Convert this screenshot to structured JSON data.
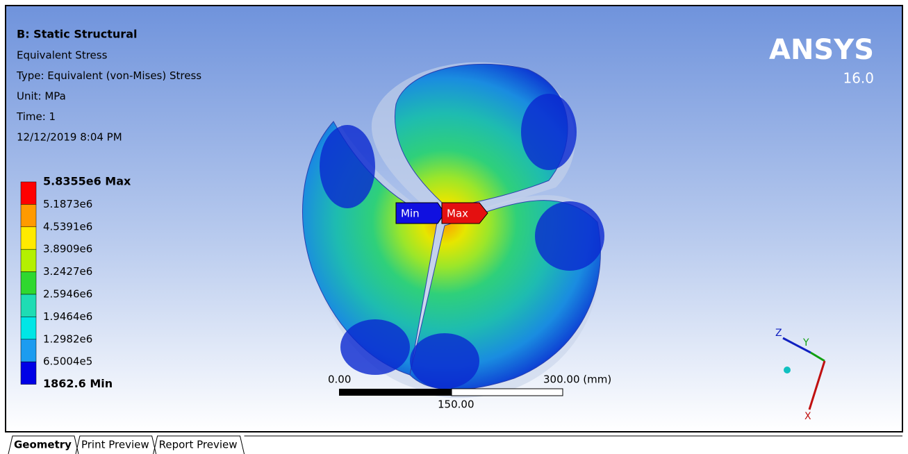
{
  "header": {
    "title": "B: Static Structural",
    "lines": [
      "Equivalent Stress",
      "Type: Equivalent (von-Mises) Stress",
      "Unit: MPa",
      "Time: 1",
      "12/12/2019 8:04 PM"
    ]
  },
  "legend": {
    "max_label": "5.8355e6 Max",
    "labels": [
      "5.1873e6",
      "4.5391e6",
      "3.8909e6",
      "3.2427e6",
      "2.5946e6",
      "1.9464e6",
      "1.2982e6",
      "6.5004e5"
    ],
    "min_label": "1862.6 Min",
    "colors": [
      "#ff0000",
      "#ff9a00",
      "#ffea00",
      "#b4f000",
      "#2fd82f",
      "#1edcb4",
      "#00e6e6",
      "#1c9cf0",
      "#0000e6"
    ]
  },
  "logo": {
    "name": "ANSYS",
    "version": "16.0"
  },
  "probes": {
    "min": "Min",
    "max": "Max"
  },
  "scale": {
    "start": "0.00",
    "end": "300.00 (mm)",
    "mid": "150.00"
  },
  "triad": {
    "z": "Z",
    "y": "Y",
    "x": "X"
  },
  "tabs": [
    "Geometry",
    "Print Preview",
    "Report Preview"
  ]
}
